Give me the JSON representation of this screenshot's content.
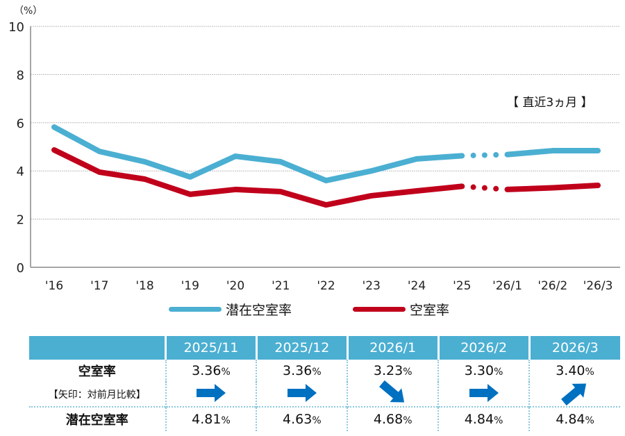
{
  "chart_data": {
    "type": "line",
    "y_unit_label": "（%）",
    "ylim": [
      0,
      10
    ],
    "yticks": [
      "0",
      "2",
      "4",
      "6",
      "8",
      "10"
    ],
    "grid": true,
    "categories": [
      "'16",
      "'17",
      "'18",
      "'19",
      "'20",
      "'21",
      "'22",
      "'23",
      "'24",
      "'25",
      "'26/1",
      "'26/2",
      "'26/3"
    ],
    "break_after_index": 9,
    "annotation": "【 直近3ヵ月 】",
    "legend_position": "bottom",
    "series": [
      {
        "name": "潜在空室率",
        "color": "#4bafd2",
        "values": [
          5.82,
          4.81,
          4.38,
          3.75,
          4.61,
          4.38,
          3.6,
          4.0,
          4.5,
          4.63,
          4.68,
          4.84,
          4.84
        ]
      },
      {
        "name": "空室率",
        "color": "#c0001b",
        "values": [
          4.87,
          3.95,
          3.66,
          3.03,
          3.23,
          3.14,
          2.59,
          2.97,
          3.17,
          3.36,
          3.23,
          3.3,
          3.4
        ]
      }
    ]
  },
  "table": {
    "columns": [
      "2025/11",
      "2025/12",
      "2026/1",
      "2026/2",
      "2026/3"
    ],
    "vacancy_label": "空室率",
    "arrow_note": "【矢印：対前月比較】",
    "potential_label": "潜在空室率",
    "percent_sign": "%",
    "vacancy": [
      "3.36",
      "3.36",
      "3.23",
      "3.30",
      "3.40"
    ],
    "arrows": [
      "flat",
      "flat",
      "down",
      "flat",
      "up"
    ],
    "potential": [
      "4.81",
      "4.63",
      "4.68",
      "4.84",
      "4.84"
    ],
    "arrow_color": "#0070c0"
  }
}
